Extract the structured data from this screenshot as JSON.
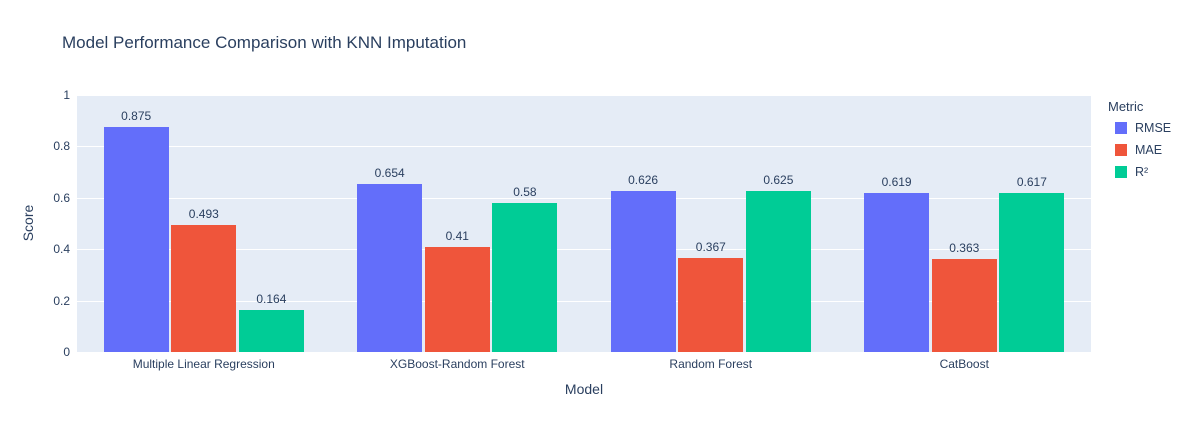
{
  "title": "Model Performance Comparison with KNN Imputation",
  "chart_data": {
    "type": "bar",
    "title": "Model Performance Comparison with KNN Imputation",
    "categories": [
      "Multiple Linear Regression",
      "XGBoost-Random Forest",
      "Random Forest",
      "CatBoost"
    ],
    "series": [
      {
        "name": "RMSE",
        "color": "#636efa",
        "values": [
          0.875,
          0.654,
          0.626,
          0.619
        ],
        "labels": [
          "0.875",
          "0.654",
          "0.626",
          "0.619"
        ]
      },
      {
        "name": "MAE",
        "color": "#ef553b",
        "values": [
          0.493,
          0.41,
          0.367,
          0.363
        ],
        "labels": [
          "0.493",
          "0.41",
          "0.367",
          "0.363"
        ]
      },
      {
        "name": "R²",
        "color": "#00cc96",
        "values": [
          0.164,
          0.58,
          0.625,
          0.617
        ],
        "labels": [
          "0.164",
          "0.58",
          "0.625",
          "0.617"
        ]
      }
    ],
    "xlabel": "Model",
    "ylabel": "Score",
    "ylim": [
      0,
      1
    ],
    "yticks": [
      0,
      0.2,
      0.4,
      0.6,
      0.8,
      1
    ],
    "ytick_labels": [
      "0",
      "0.2",
      "0.4",
      "0.6",
      "0.8",
      "1"
    ],
    "grid": true,
    "legend_title": "Metric",
    "legend_position": "right"
  },
  "colors": {
    "paper_background": "#ffffff",
    "plot_background": "#e5ecf6",
    "gridline": "#ffffff",
    "text": "#2a3f5f",
    "rmse": "#636efa",
    "mae": "#ef553b",
    "r2": "#00cc96"
  }
}
